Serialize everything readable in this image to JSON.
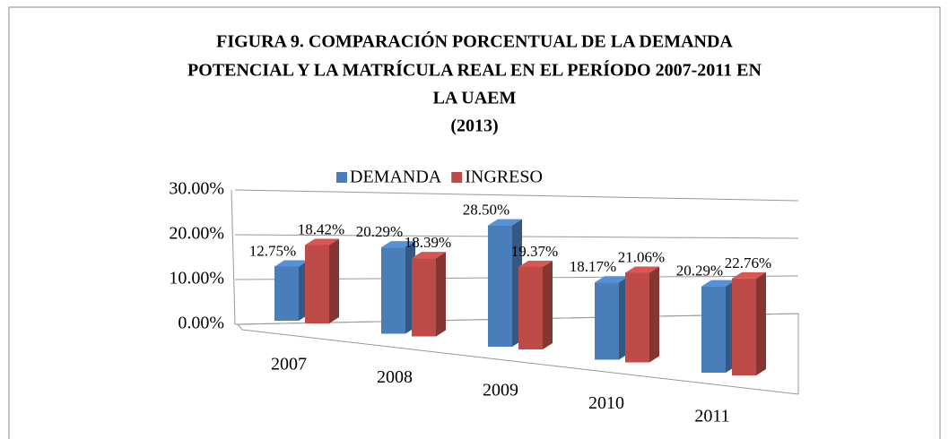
{
  "chart_data": {
    "type": "bar3d",
    "title": [
      "FIGURA 9. COMPARACIÓN PORCENTUAL DE LA DEMANDA",
      "POTENCIAL Y LA MATRÍCULA REAL EN EL PERÍODO 2007-2011 EN",
      "LA UAEM"
    ],
    "subtitle": "(2013)",
    "categories": [
      "2007",
      "2008",
      "2009",
      "2010",
      "2011"
    ],
    "series": [
      {
        "name": "DEMANDA",
        "color": "#4a7ebb",
        "values": [
          12.75,
          20.29,
          28.5,
          18.17,
          20.29
        ],
        "value_labels": [
          "12.75%",
          "20.29%",
          "28.50%",
          "18.17%",
          "20.29%"
        ]
      },
      {
        "name": "INGRESO",
        "color": "#be4b48",
        "values": [
          18.42,
          18.39,
          19.37,
          21.06,
          22.76
        ],
        "value_labels": [
          "18.42%",
          "18.39%",
          "19.37%",
          "21.06%",
          "22.76%"
        ]
      }
    ],
    "ylim": [
      0,
      30
    ],
    "yticks": [
      {
        "value": 0,
        "label": "0.00%"
      },
      {
        "value": 10,
        "label": "10.00%"
      },
      {
        "value": 20,
        "label": "20.00%"
      },
      {
        "value": 30,
        "label": "30.00%"
      }
    ],
    "grid": true,
    "legend": "top"
  }
}
